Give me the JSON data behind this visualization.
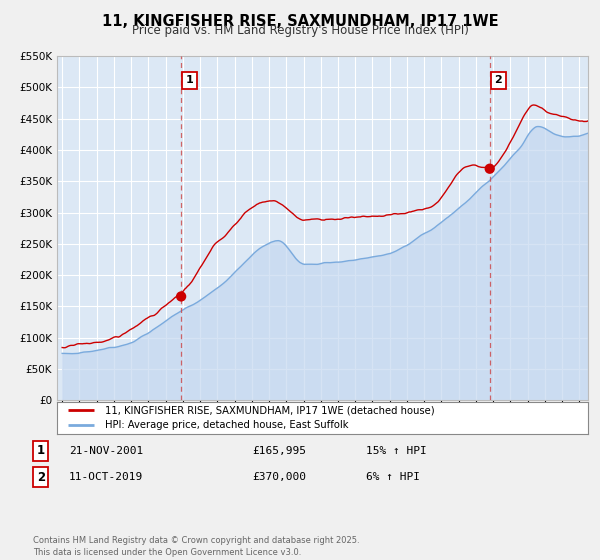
{
  "title": "11, KINGFISHER RISE, SAXMUNDHAM, IP17 1WE",
  "subtitle": "Price paid vs. HM Land Registry's House Price Index (HPI)",
  "bg_color": "#f0f0f0",
  "plot_bg_color": "#dce8f5",
  "grid_color": "#ffffff",
  "property_color": "#cc0000",
  "hpi_color": "#7aaadd",
  "hpi_fill_color": "#c5d8f0",
  "sale1_year": 2001.9,
  "sale1_price": 165995,
  "sale2_year": 2019.8,
  "sale2_price": 370000,
  "legend_line1": "11, KINGFISHER RISE, SAXMUNDHAM, IP17 1WE (detached house)",
  "legend_line2": "HPI: Average price, detached house, East Suffolk",
  "table_row1": [
    "1",
    "21-NOV-2001",
    "£165,995",
    "15% ↑ HPI"
  ],
  "table_row2": [
    "2",
    "11-OCT-2019",
    "£370,000",
    "6% ↑ HPI"
  ],
  "footer": "Contains HM Land Registry data © Crown copyright and database right 2025.\nThis data is licensed under the Open Government Licence v3.0.",
  "ylim": [
    0,
    550000
  ],
  "yticks": [
    0,
    50000,
    100000,
    150000,
    200000,
    250000,
    300000,
    350000,
    400000,
    450000,
    500000,
    550000
  ],
  "ytick_labels": [
    "£0",
    "£50K",
    "£100K",
    "£150K",
    "£200K",
    "£250K",
    "£300K",
    "£350K",
    "£400K",
    "£450K",
    "£500K",
    "£550K"
  ],
  "xlim_start": 1994.7,
  "xlim_end": 2025.5
}
